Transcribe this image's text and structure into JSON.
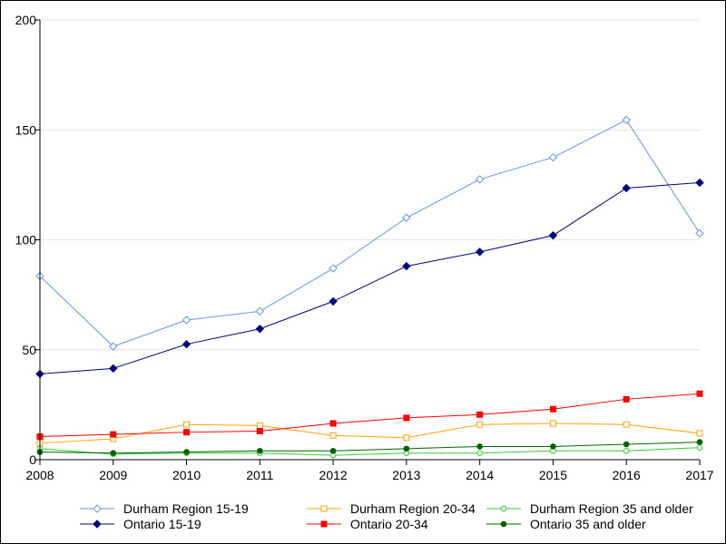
{
  "chart_data": {
    "type": "line",
    "title": "",
    "xlabel": "",
    "ylabel": "",
    "x": [
      "2008",
      "2009",
      "2010",
      "2011",
      "2012",
      "2013",
      "2014",
      "2015",
      "2016",
      "2017"
    ],
    "xlim": [
      2008,
      2017
    ],
    "ylim": [
      0,
      200
    ],
    "y_ticks": [
      0,
      50,
      100,
      150,
      200
    ],
    "grid": "horizontal",
    "legend_position": "bottom",
    "series": [
      {
        "name": "Durham Region 15-19",
        "color": "#6495ED",
        "marker": "diamond-open",
        "values": [
          83.5,
          51.5,
          63.5,
          67.5,
          87,
          110,
          127.5,
          137.5,
          154.5,
          103
        ]
      },
      {
        "name": "Durham Region 20-34",
        "color": "#FFA500",
        "marker": "square-open",
        "values": [
          7.5,
          9.5,
          16,
          15.5,
          11,
          10,
          16,
          16.5,
          16,
          12
        ]
      },
      {
        "name": "Durham Region 35 and older",
        "color": "#32CD32",
        "marker": "circle-open",
        "values": [
          5,
          2.5,
          3,
          3,
          2,
          3,
          3,
          4,
          4,
          5.5
        ]
      },
      {
        "name": "Ontario 15-19",
        "color": "#000080",
        "marker": "diamond-filled",
        "values": [
          39,
          41.5,
          52.5,
          59.5,
          72,
          88,
          94.5,
          102,
          123.5,
          126
        ]
      },
      {
        "name": "Ontario 20-34",
        "color": "#FF0000",
        "marker": "square-filled",
        "values": [
          10.5,
          11.5,
          12.5,
          13,
          16.5,
          19,
          20.5,
          23,
          27.5,
          30
        ]
      },
      {
        "name": "Ontario 35 and older",
        "color": "#006400",
        "marker": "circle-filled",
        "values": [
          3.5,
          3,
          3.5,
          4,
          4,
          5,
          6,
          6,
          7,
          8
        ]
      }
    ]
  }
}
